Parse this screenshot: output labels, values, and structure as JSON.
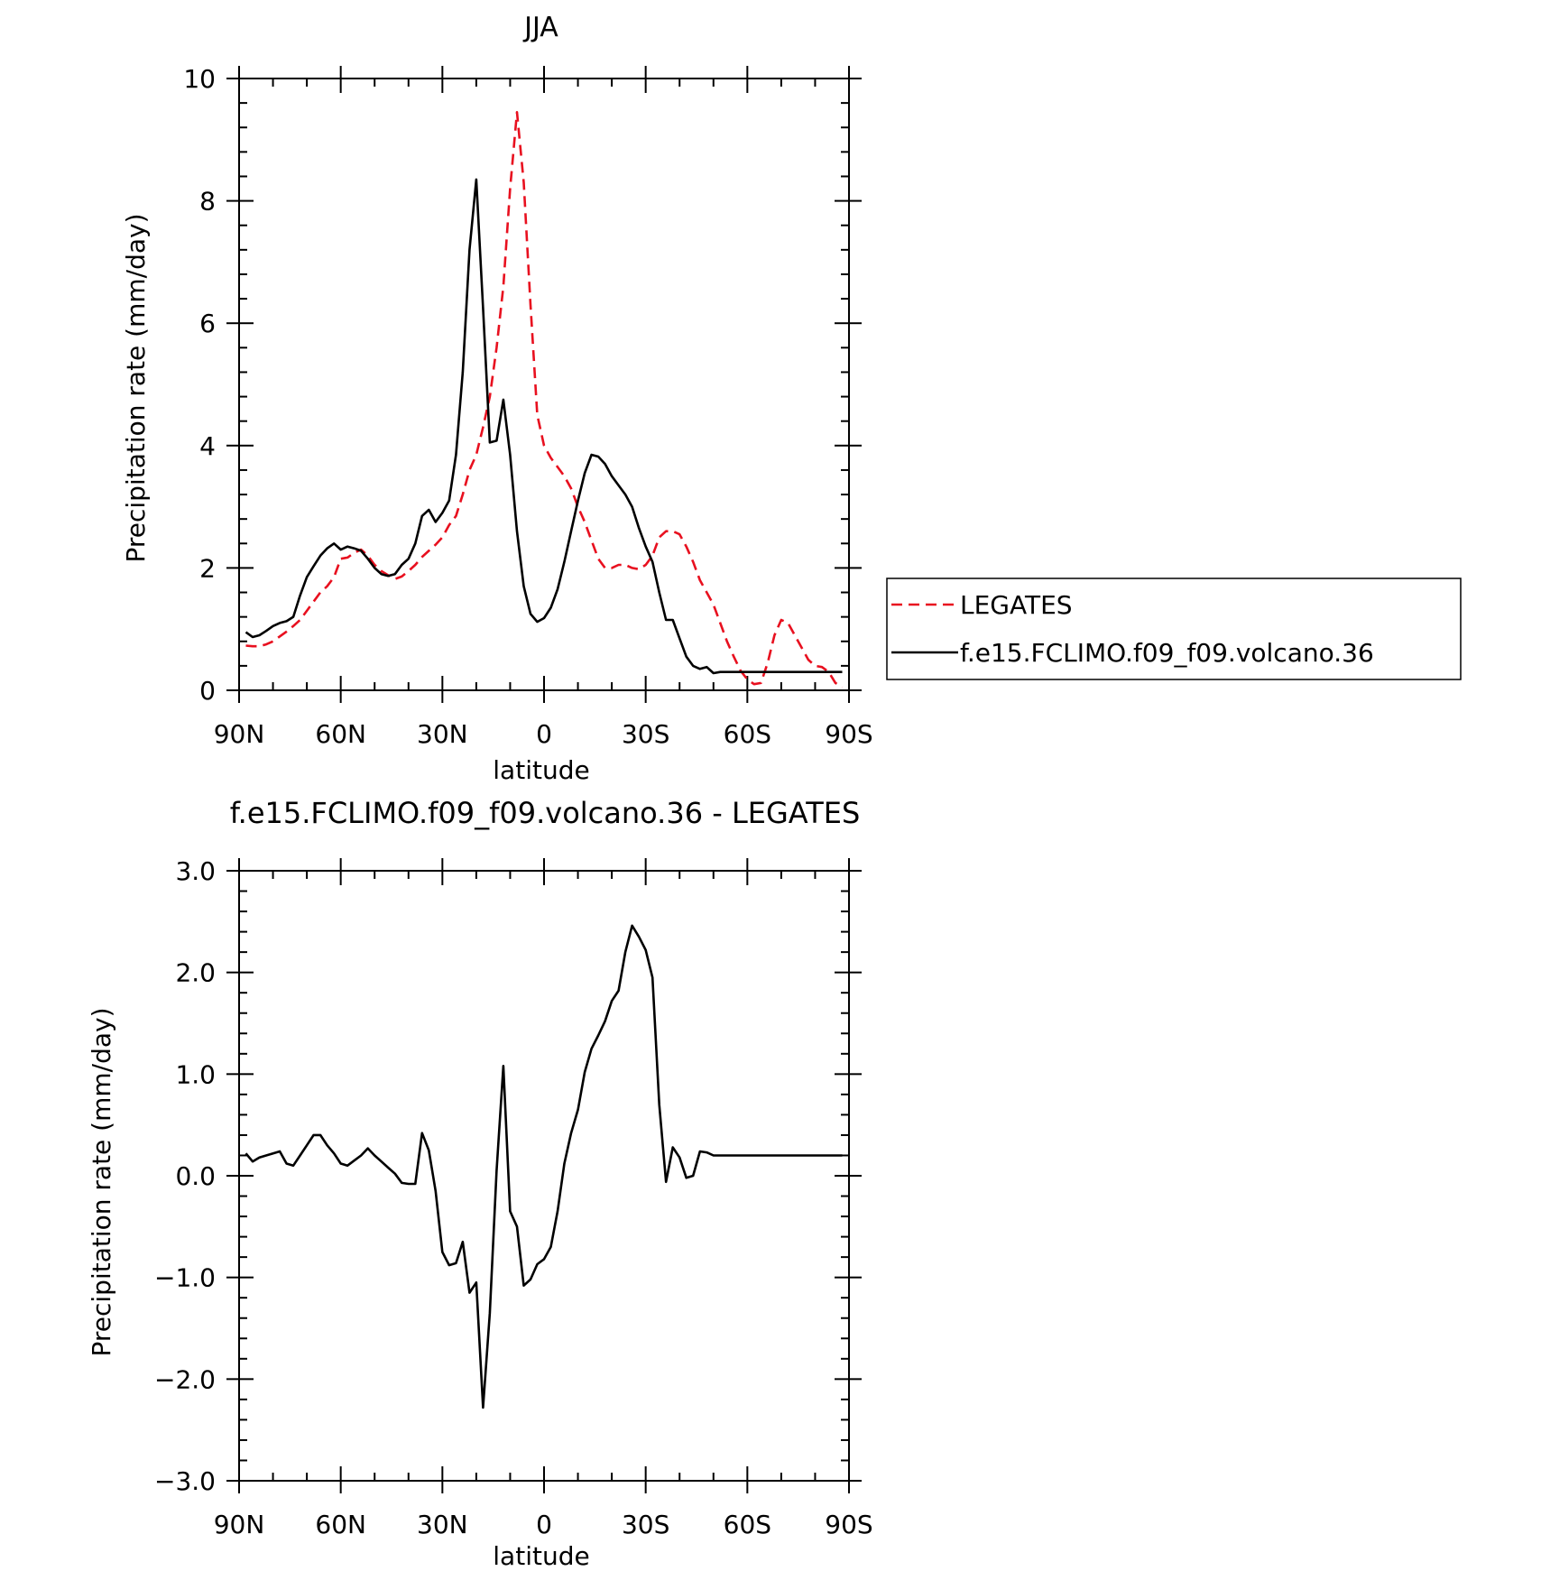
{
  "chart_data": [
    {
      "type": "line",
      "title": "JJA",
      "xlabel": "latitude",
      "ylabel": "Precipitation rate (mm/day)",
      "xlim": [
        90,
        -90
      ],
      "ylim": [
        0,
        10
      ],
      "xticks": [
        {
          "value": 90,
          "label": "90N"
        },
        {
          "value": 60,
          "label": "60N"
        },
        {
          "value": 30,
          "label": "30N"
        },
        {
          "value": 0,
          "label": "0"
        },
        {
          "value": -30,
          "label": "30S"
        },
        {
          "value": -60,
          "label": "60S"
        },
        {
          "value": -90,
          "label": "90S"
        }
      ],
      "yticks": [
        {
          "value": 0,
          "label": "0"
        },
        {
          "value": 2,
          "label": "2"
        },
        {
          "value": 4,
          "label": "4"
        },
        {
          "value": 6,
          "label": "6"
        },
        {
          "value": 8,
          "label": "8"
        },
        {
          "value": 10,
          "label": "10"
        }
      ],
      "legend_position": "right",
      "series": [
        {
          "name": "LEGATES",
          "color": "#e8101f",
          "dash": "dashed",
          "x": [
            88,
            86,
            84,
            82,
            80,
            78,
            76,
            74,
            72,
            70,
            68,
            66,
            64,
            62,
            60,
            58,
            56,
            54,
            52,
            50,
            48,
            46,
            44,
            42,
            40,
            38,
            36,
            34,
            32,
            30,
            28,
            26,
            24,
            22,
            20,
            18,
            16,
            14,
            12,
            10,
            8,
            6,
            4,
            2,
            0,
            -2,
            -4,
            -6,
            -8,
            -10,
            -12,
            -14,
            -16,
            -18,
            -20,
            -22,
            -24,
            -26,
            -28,
            -30,
            -32,
            -34,
            -36,
            -38,
            -40,
            -42,
            -44,
            -46,
            -48,
            -50,
            -52,
            -54,
            -56,
            -58,
            -60,
            -62,
            -64,
            -66,
            -68,
            -70,
            -72,
            -74,
            -76,
            -78,
            -80,
            -82,
            -84,
            -86,
            -88
          ],
          "y": [
            0.73,
            0.72,
            0.72,
            0.75,
            0.8,
            0.88,
            0.96,
            1.05,
            1.15,
            1.3,
            1.45,
            1.6,
            1.7,
            1.85,
            2.15,
            2.17,
            2.25,
            2.3,
            2.2,
            2.05,
            1.95,
            1.88,
            1.82,
            1.86,
            1.95,
            2.05,
            2.18,
            2.28,
            2.38,
            2.5,
            2.7,
            2.85,
            3.2,
            3.6,
            3.85,
            4.3,
            4.8,
            5.6,
            6.6,
            8.2,
            9.45,
            8.3,
            6.3,
            4.5,
            4.0,
            3.8,
            3.65,
            3.5,
            3.3,
            3.0,
            2.75,
            2.45,
            2.15,
            2.0,
            2.0,
            2.05,
            2.05,
            2.0,
            1.98,
            2.05,
            2.2,
            2.5,
            2.6,
            2.6,
            2.55,
            2.35,
            2.1,
            1.8,
            1.6,
            1.4,
            1.1,
            0.8,
            0.55,
            0.32,
            0.18,
            0.1,
            0.12,
            0.45,
            0.9,
            1.15,
            1.1,
            0.9,
            0.7,
            0.5,
            0.4,
            0.38,
            0.3,
            0.12,
            0.05
          ]
        },
        {
          "name": "f.e15.FCLIMO.f09_f09.volcano.36",
          "color": "#000000",
          "dash": "solid",
          "x": [
            88,
            86,
            84,
            82,
            80,
            78,
            76,
            74,
            72,
            70,
            68,
            66,
            64,
            62,
            60,
            58,
            56,
            54,
            52,
            50,
            48,
            46,
            44,
            42,
            40,
            38,
            36,
            34,
            32,
            30,
            28,
            26,
            24,
            22,
            20,
            18,
            16,
            14,
            12,
            10,
            8,
            6,
            4,
            2,
            0,
            -2,
            -4,
            -6,
            -8,
            -10,
            -12,
            -14,
            -16,
            -18,
            -20,
            -22,
            -24,
            -26,
            -28,
            -30,
            -32,
            -34,
            -36,
            -38,
            -40,
            -42,
            -44,
            -46,
            -48,
            -50,
            -52,
            -54,
            -56,
            -58,
            -60,
            -62,
            -64,
            -66,
            -68,
            -70,
            -72,
            -74,
            -76,
            -78,
            -80,
            -82,
            -84,
            -86,
            -88
          ],
          "y": [
            0.95,
            0.87,
            0.9,
            0.97,
            1.05,
            1.1,
            1.13,
            1.2,
            1.55,
            1.85,
            2.03,
            2.2,
            2.32,
            2.4,
            2.3,
            2.35,
            2.32,
            2.28,
            2.15,
            2.0,
            1.9,
            1.87,
            1.9,
            2.05,
            2.15,
            2.4,
            2.85,
            2.95,
            2.75,
            2.9,
            3.1,
            3.85,
            5.2,
            7.2,
            8.35,
            6.25,
            4.05,
            4.08,
            4.75,
            3.85,
            2.6,
            1.7,
            1.25,
            1.12,
            1.18,
            1.35,
            1.65,
            2.1,
            2.6,
            3.1,
            3.55,
            3.85,
            3.82,
            3.7,
            3.5,
            3.35,
            3.2,
            3.0,
            2.65,
            2.35,
            2.1,
            1.6,
            1.15,
            1.15,
            0.85,
            0.55,
            0.4,
            0.35,
            0.38,
            0.28,
            0.3,
            0.3,
            0.3,
            0.3,
            0.3,
            0.3,
            0.3,
            0.3,
            0.3,
            0.3,
            0.3,
            0.3,
            0.3,
            0.3,
            0.3,
            0.3,
            0.3,
            0.3,
            0.3
          ]
        }
      ]
    },
    {
      "type": "line",
      "title": "f.e15.FCLIMO.f09_f09.volcano.36 - LEGATES",
      "xlabel": "latitude",
      "ylabel": "Precipitation rate (mm/day)",
      "xlim": [
        90,
        -90
      ],
      "ylim": [
        -3,
        3
      ],
      "xticks": [
        {
          "value": 90,
          "label": "90N"
        },
        {
          "value": 60,
          "label": "60N"
        },
        {
          "value": 30,
          "label": "30N"
        },
        {
          "value": 0,
          "label": "0"
        },
        {
          "value": -30,
          "label": "30S"
        },
        {
          "value": -60,
          "label": "60S"
        },
        {
          "value": -90,
          "label": "90S"
        }
      ],
      "yticks": [
        {
          "value": -3,
          "label": "−3.0"
        },
        {
          "value": -2,
          "label": "−2.0"
        },
        {
          "value": -1,
          "label": "−1.0"
        },
        {
          "value": 0,
          "label": "0.0"
        },
        {
          "value": 1,
          "label": "1.0"
        },
        {
          "value": 2,
          "label": "2.0"
        },
        {
          "value": 3,
          "label": "3.0"
        }
      ],
      "series": [
        {
          "color": "#000000",
          "dash": "solid",
          "x": [
            88,
            86,
            84,
            82,
            80,
            78,
            76,
            74,
            72,
            70,
            68,
            66,
            64,
            62,
            60,
            58,
            56,
            54,
            52,
            50,
            48,
            46,
            44,
            42,
            40,
            38,
            36,
            34,
            32,
            30,
            28,
            26,
            24,
            22,
            20,
            18,
            16,
            14,
            12,
            10,
            8,
            6,
            4,
            2,
            0,
            -2,
            -4,
            -6,
            -8,
            -10,
            -12,
            -14,
            -16,
            -18,
            -20,
            -22,
            -24,
            -26,
            -28,
            -30,
            -32,
            -34,
            -36,
            -38,
            -40,
            -42,
            -44,
            -46,
            -48,
            -50,
            -52,
            -54,
            -56,
            -58,
            -60,
            -62,
            -64,
            -66,
            -68,
            -70,
            -72,
            -74,
            -76,
            -78,
            -80,
            -82,
            -84,
            -86,
            -88
          ],
          "y": [
            0.22,
            0.14,
            0.18,
            0.2,
            0.22,
            0.24,
            0.12,
            0.1,
            0.2,
            0.3,
            0.4,
            0.4,
            0.3,
            0.22,
            0.12,
            0.1,
            0.15,
            0.2,
            0.27,
            0.2,
            0.14,
            0.08,
            0.02,
            -0.07,
            -0.08,
            -0.08,
            0.42,
            0.25,
            -0.15,
            -0.75,
            -0.88,
            -0.86,
            -0.65,
            -1.15,
            -1.05,
            -2.28,
            -1.35,
            0.05,
            1.08,
            -0.35,
            -0.5,
            -1.08,
            -1.02,
            -0.87,
            -0.82,
            -0.7,
            -0.35,
            0.12,
            0.42,
            0.65,
            1.02,
            1.25,
            1.38,
            1.52,
            1.72,
            1.82,
            2.2,
            2.46,
            2.35,
            2.22,
            1.95,
            0.7,
            -0.06,
            0.28,
            0.18,
            -0.02,
            0.0,
            0.24,
            0.23,
            0.2,
            0.2,
            0.2,
            0.2,
            0.2,
            0.2,
            0.2,
            0.2,
            0.2,
            0.2,
            0.2,
            0.2,
            0.2,
            0.2,
            0.2,
            0.2,
            0.2,
            0.2,
            0.2,
            0.2
          ]
        }
      ]
    }
  ]
}
